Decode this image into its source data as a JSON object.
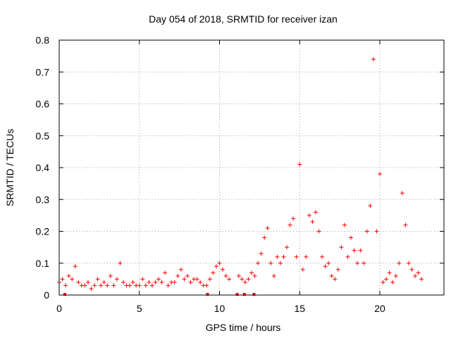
{
  "chart_data": {
    "type": "scatter",
    "title": "Day 054 of 2018, SRMTID for receiver izan",
    "xlabel": "GPS time / hours",
    "ylabel": "SRMTID / TECUs",
    "xlim": [
      0,
      24
    ],
    "ylim": [
      0,
      0.8
    ],
    "x_ticks": [
      0,
      5,
      10,
      15,
      20
    ],
    "x_tick_labels": [
      "0",
      "5",
      "10",
      "15",
      "20"
    ],
    "y_ticks": [
      0,
      0.1,
      0.2,
      0.3,
      0.4,
      0.5,
      0.6,
      0.7,
      0.8
    ],
    "y_tick_labels": [
      "0",
      "0.1",
      "0.2",
      "0.3",
      "0.4",
      "0.5",
      "0.6",
      "0.7",
      "0.8"
    ],
    "grid": true,
    "legend": "none",
    "marker": "plus",
    "colors": {
      "series": "#ff0000",
      "gap_markers": "#ff0000"
    },
    "series": [
      {
        "name": "SRMTID",
        "x": [
          0.0,
          0.2,
          0.4,
          0.6,
          0.8,
          1.0,
          1.2,
          1.4,
          1.6,
          1.8,
          2.0,
          2.2,
          2.4,
          2.6,
          2.8,
          3.0,
          3.2,
          3.4,
          3.6,
          3.8,
          4.0,
          4.2,
          4.4,
          4.6,
          4.8,
          5.0,
          5.2,
          5.4,
          5.6,
          5.8,
          6.0,
          6.2,
          6.4,
          6.6,
          6.8,
          7.0,
          7.2,
          7.4,
          7.6,
          7.8,
          8.0,
          8.2,
          8.4,
          8.6,
          8.8,
          9.0,
          9.2,
          9.4,
          9.6,
          9.8,
          10.0,
          10.2,
          10.4,
          10.6,
          11.2,
          11.4,
          11.6,
          11.8,
          12.0,
          12.2,
          12.4,
          12.6,
          12.8,
          13.0,
          13.2,
          13.4,
          13.6,
          13.8,
          14.0,
          14.2,
          14.4,
          14.6,
          14.8,
          15.0,
          15.2,
          15.4,
          15.6,
          15.8,
          16.0,
          16.2,
          16.4,
          16.6,
          16.8,
          17.0,
          17.2,
          17.4,
          17.6,
          17.8,
          18.0,
          18.2,
          18.4,
          18.6,
          18.8,
          19.0,
          19.2,
          19.4,
          19.6,
          19.8,
          20.0,
          20.2,
          20.4,
          20.6,
          20.8,
          21.0,
          21.2,
          21.4,
          21.6,
          21.8,
          22.0,
          22.2,
          22.4,
          22.6
        ],
        "y": [
          0.04,
          0.05,
          0.03,
          0.06,
          0.05,
          0.09,
          0.04,
          0.03,
          0.03,
          0.04,
          0.02,
          0.03,
          0.05,
          0.03,
          0.04,
          0.03,
          0.06,
          0.03,
          0.05,
          0.1,
          0.04,
          0.03,
          0.03,
          0.04,
          0.03,
          0.03,
          0.05,
          0.03,
          0.04,
          0.03,
          0.04,
          0.05,
          0.04,
          0.07,
          0.03,
          0.04,
          0.04,
          0.06,
          0.08,
          0.05,
          0.06,
          0.04,
          0.05,
          0.05,
          0.04,
          0.03,
          0.03,
          0.05,
          0.07,
          0.09,
          0.1,
          0.08,
          0.06,
          0.05,
          0.06,
          0.05,
          0.04,
          0.05,
          0.07,
          0.06,
          0.1,
          0.13,
          0.18,
          0.21,
          0.1,
          0.06,
          0.12,
          0.1,
          0.12,
          0.15,
          0.22,
          0.24,
          0.12,
          0.41,
          0.08,
          0.12,
          0.25,
          0.23,
          0.26,
          0.2,
          0.12,
          0.09,
          0.1,
          0.06,
          0.05,
          0.08,
          0.15,
          0.22,
          0.12,
          0.18,
          0.14,
          0.1,
          0.14,
          0.1,
          0.2,
          0.28,
          0.74,
          0.2,
          0.38,
          0.04,
          0.05,
          0.07,
          0.04,
          0.06,
          0.1,
          0.32,
          0.22,
          0.1,
          0.08,
          0.06,
          0.07,
          0.05
        ]
      }
    ],
    "gap_markers_x": [
      0.35,
      9.25,
      11.1,
      11.55,
      12.15
    ]
  }
}
